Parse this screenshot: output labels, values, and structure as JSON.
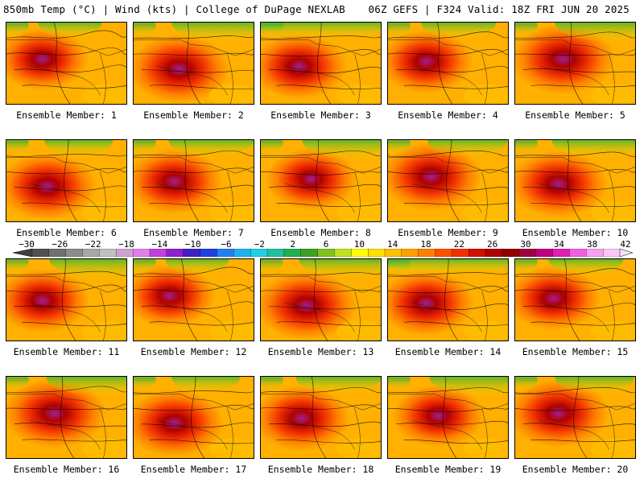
{
  "header": {
    "left": "850mb Temp (°C) | Wind (kts) | College of DuPage NEXLAB",
    "right": "06Z GEFS | F324 Valid: 18Z FRI JUN 20 2025"
  },
  "members": [
    "Ensemble Member: 1",
    "Ensemble Member: 2",
    "Ensemble Member: 3",
    "Ensemble Member: 4",
    "Ensemble Member: 5",
    "Ensemble Member: 6",
    "Ensemble Member: 7",
    "Ensemble Member: 8",
    "Ensemble Member: 9",
    "Ensemble Member: 10",
    "Ensemble Member: 11",
    "Ensemble Member: 12",
    "Ensemble Member: 13",
    "Ensemble Member: 14",
    "Ensemble Member: 15",
    "Ensemble Member: 16",
    "Ensemble Member: 17",
    "Ensemble Member: 18",
    "Ensemble Member: 19",
    "Ensemble Member: 20"
  ],
  "colorbar": {
    "tick_labels": [
      "−30",
      "−26",
      "−22",
      "−18",
      "−14",
      "−10",
      "−6",
      "−2",
      "2",
      "6",
      "10",
      "14",
      "18",
      "22",
      "26",
      "30",
      "34",
      "38",
      "42"
    ],
    "colors": [
      "#505050",
      "#707070",
      "#8c8c8c",
      "#a8a8a8",
      "#c0c0c0",
      "#d0a0d0",
      "#e080e8",
      "#c040e0",
      "#9020d0",
      "#4020c0",
      "#2040e0",
      "#2080f0",
      "#20b0f0",
      "#20d0e0",
      "#20c0a0",
      "#20b050",
      "#40a020",
      "#80c020",
      "#c0e020",
      "#ffff00",
      "#ffe000",
      "#ffc000",
      "#ffa000",
      "#ff8000",
      "#ff5000",
      "#f03000",
      "#d01000",
      "#b00000",
      "#900000",
      "#a00040",
      "#c00080",
      "#e020b0",
      "#f060e0",
      "#f8a0f0",
      "#fcc8f8"
    ]
  }
}
